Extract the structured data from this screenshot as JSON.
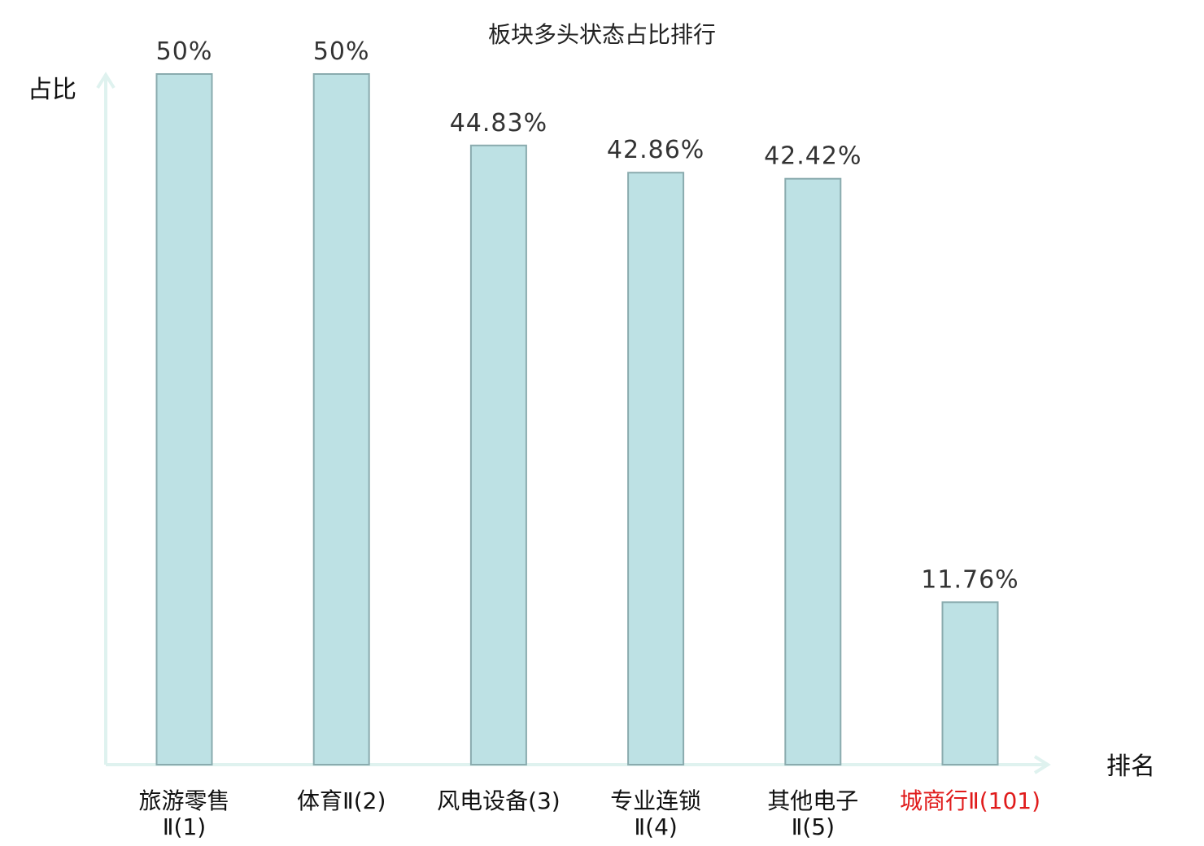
{
  "chart_data": {
    "type": "bar",
    "title": "板块多头状态占比排行",
    "ylabel": "占比",
    "xlabel": "排名",
    "categories": [
      {
        "line1": "旅游零售",
        "line2": "Ⅱ(1)"
      },
      {
        "line1": "体育Ⅱ(2)",
        "line2": ""
      },
      {
        "line1": "风电设备(3)",
        "line2": ""
      },
      {
        "line1": "专业连锁",
        "line2": "Ⅱ(4)"
      },
      {
        "line1": "其他电子",
        "line2": "Ⅱ(5)"
      },
      {
        "line1": "城商行Ⅱ(101)",
        "line2": ""
      }
    ],
    "values": [
      50,
      50,
      44.83,
      42.86,
      42.42,
      11.76
    ],
    "value_labels": [
      "50%",
      "50%",
      "44.83%",
      "42.86%",
      "42.42%",
      "11.76%"
    ],
    "highlight_index": 5,
    "ylim": [
      0,
      50
    ],
    "grid": false,
    "colors": {
      "bar_fill": "#bde1e4",
      "bar_stroke": "#8aabae",
      "axis": "#dff2ef",
      "highlight_text": "#e01b1b"
    }
  }
}
